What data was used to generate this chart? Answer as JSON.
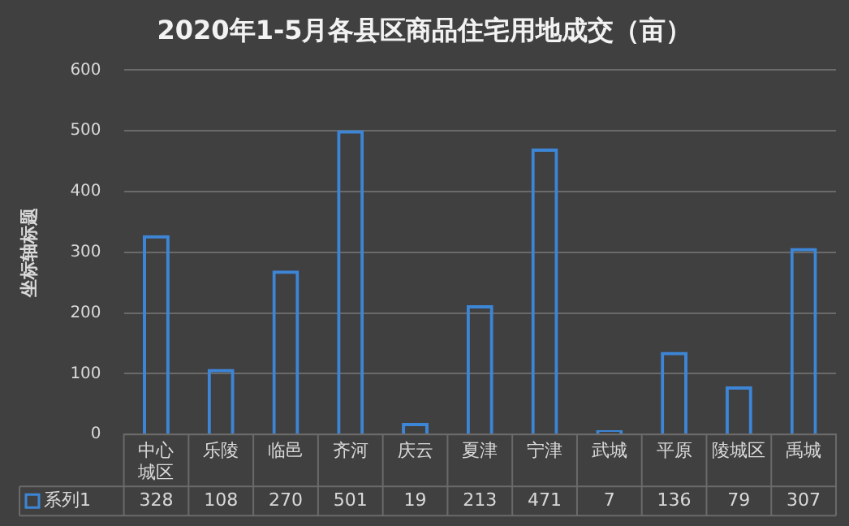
{
  "chart_data": {
    "type": "bar",
    "title": "2020年1-5月各县区商品住宅用地成交（亩）",
    "ylabel": "坐标轴标题",
    "categories": [
      "中心城区",
      "乐陵",
      "临邑",
      "齐河",
      "庆云",
      "夏津",
      "宁津",
      "武城",
      "平原",
      "陵城区",
      "禹城"
    ],
    "series": [
      {
        "name": "系列1",
        "color": "#3d85d6",
        "values": [
          328,
          108,
          270,
          501,
          19,
          213,
          471,
          7,
          136,
          79,
          307
        ]
      }
    ],
    "ylim": [
      0,
      600
    ],
    "yticks": [
      0,
      100,
      200,
      300,
      400,
      500,
      600
    ],
    "grid": "y",
    "data_labels": true,
    "legend": "bottom"
  }
}
